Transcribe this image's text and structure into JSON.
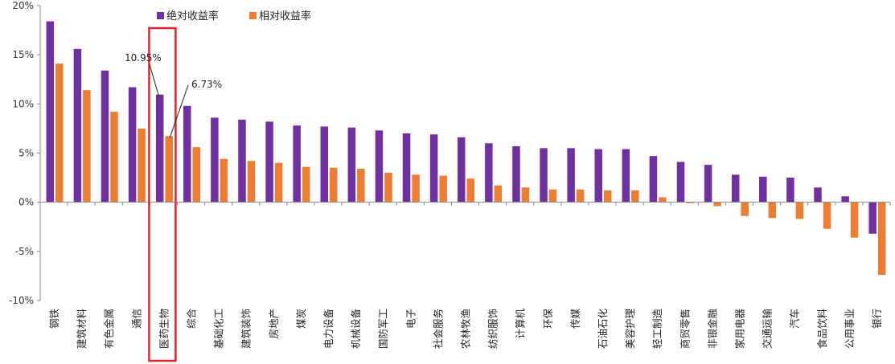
{
  "chart_data": {
    "type": "bar",
    "categories": [
      "钢铁",
      "建筑材料",
      "有色金属",
      "通信",
      "医药生物",
      "综合",
      "基础化工",
      "建筑装饰",
      "房地产",
      "煤炭",
      "电力设备",
      "机械设备",
      "国防军工",
      "电子",
      "社会服务",
      "农林牧渔",
      "纺织服饰",
      "计算机",
      "环保",
      "传媒",
      "石油石化",
      "美容护理",
      "轻工制造",
      "商贸零售",
      "非银金融",
      "家用电器",
      "交通运输",
      "汽车",
      "食品饮料",
      "公用事业",
      "银行"
    ],
    "series": [
      {
        "name": "绝对收益率",
        "color": "#7030a0",
        "values": [
          18.4,
          15.6,
          13.4,
          11.7,
          10.95,
          9.8,
          8.6,
          8.4,
          8.2,
          7.8,
          7.7,
          7.6,
          7.3,
          7.0,
          6.9,
          6.6,
          6.0,
          5.7,
          5.5,
          5.5,
          5.4,
          5.4,
          4.7,
          4.1,
          3.8,
          2.8,
          2.6,
          2.5,
          1.5,
          0.6,
          -3.2
        ]
      },
      {
        "name": "相对收益率",
        "color": "#ed7d31",
        "values": [
          14.1,
          11.4,
          9.2,
          7.5,
          6.73,
          5.6,
          4.4,
          4.2,
          4.0,
          3.6,
          3.5,
          3.4,
          3.0,
          2.8,
          2.7,
          2.4,
          1.7,
          1.5,
          1.3,
          1.3,
          1.2,
          1.2,
          0.5,
          -0.1,
          -0.4,
          -1.4,
          -1.6,
          -1.7,
          -2.7,
          -3.6,
          -7.4
        ]
      }
    ],
    "ylim": [
      -10,
      20
    ],
    "yticks": [
      "-10%",
      "-5%",
      "0%",
      "5%",
      "10%",
      "15%",
      "20%"
    ],
    "annotations": [
      {
        "text": "10.95%",
        "category": "医药生物",
        "series": "绝对收益率"
      },
      {
        "text": "6.73%",
        "category": "医药生物",
        "series": "相对收益率"
      }
    ],
    "highlight_category": "医药生物",
    "highlight_color": "#e0242b",
    "legend_position": "top-left",
    "grid": false
  }
}
